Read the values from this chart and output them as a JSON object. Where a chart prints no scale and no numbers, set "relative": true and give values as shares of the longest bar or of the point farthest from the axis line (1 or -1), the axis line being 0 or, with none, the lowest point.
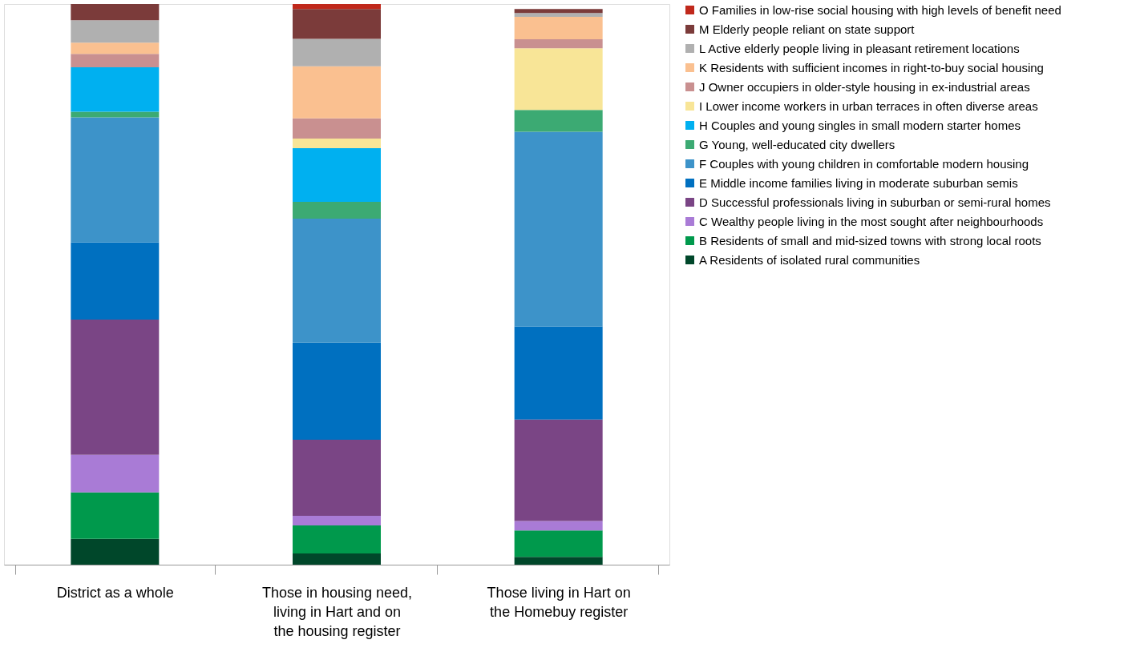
{
  "chart_data": {
    "type": "bar",
    "stacked": true,
    "relative": true,
    "legend": "right",
    "categories": [
      "District as a whole",
      "Those in housing need, living in Hart and on the housing register",
      "Those living in Hart on the Homebuy register"
    ],
    "series": [
      {
        "name": "A Residents of isolated rural communities",
        "color": "#00472a",
        "values": [
          0.046,
          0.02,
          0.014
        ]
      },
      {
        "name": "B Residents of small and mid-sized towns with strong local roots",
        "color": "#00994c",
        "values": [
          0.083,
          0.05,
          0.047
        ]
      },
      {
        "name": "C Wealthy people living in the most sought after neighbourhoods",
        "color": "#a97bd6",
        "values": [
          0.067,
          0.017,
          0.017
        ]
      },
      {
        "name": "D Successful professionals living in suburban or semi-rural homes",
        "color": "#7a4585",
        "values": [
          0.241,
          0.136,
          0.181
        ]
      },
      {
        "name": "E Middle income families living in moderate suburban semis",
        "color": "#0070c0",
        "values": [
          0.138,
          0.173,
          0.166
        ]
      },
      {
        "name": "F Couples with young children in comfortable modern housing",
        "color": "#3d93c9",
        "values": [
          0.223,
          0.221,
          0.347
        ]
      },
      {
        "name": "G Young, well-educated city dwellers",
        "color": "#3caa73",
        "values": [
          0.01,
          0.03,
          0.039
        ]
      },
      {
        "name": "H Couples and young singles in small modern starter homes",
        "color": "#00b0f0",
        "values": [
          0.079,
          0.096,
          null
        ]
      },
      {
        "name": "I Lower income workers in urban terraces in often diverse areas",
        "color": "#f8e597",
        "values": [
          null,
          0.017,
          0.11
        ]
      },
      {
        "name": "J Owner occupiers in older-style housing in ex-industrial areas",
        "color": "#c99090",
        "values": [
          0.024,
          0.036,
          0.016
        ]
      },
      {
        "name": "K Residents with sufficient incomes in right-to-buy social housing",
        "color": "#fac090",
        "values": [
          0.02,
          0.093,
          0.04
        ]
      },
      {
        "name": "L Active elderly people living in pleasant retirement locations",
        "color": "#b0b0b0",
        "values": [
          0.04,
          0.049,
          0.007
        ]
      },
      {
        "name": "M Elderly people reliant on state support",
        "color": "#7b3b3a",
        "values": [
          0.029,
          0.053,
          0.007
        ]
      },
      {
        "name": "O Families in low-rise social housing with high levels of benefit need",
        "color": "#c0281b",
        "values": [
          null,
          0.009,
          null
        ]
      }
    ]
  }
}
